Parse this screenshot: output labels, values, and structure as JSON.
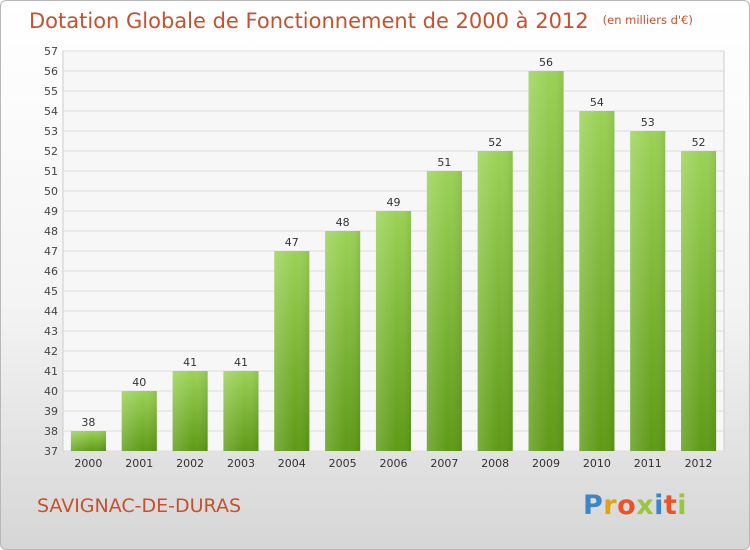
{
  "header": {
    "title": "Dotation Globale de Fonctionnement de 2000 à 2012",
    "unit": "(en milliers d'€)"
  },
  "footer": {
    "town": "SAVIGNAC-DE-DURAS",
    "logo": "Proxiti"
  },
  "colors": {
    "bar_top": "#9bd256",
    "bar_bottom": "#5e9a16",
    "title": "#c8502c"
  },
  "chart_data": {
    "type": "bar",
    "title": "Dotation Globale de Fonctionnement de 2000 à 2012",
    "categories": [
      "2000",
      "2001",
      "2002",
      "2003",
      "2004",
      "2005",
      "2006",
      "2007",
      "2008",
      "2009",
      "2010",
      "2011",
      "2012"
    ],
    "values": [
      38,
      40,
      41,
      41,
      47,
      48,
      49,
      51,
      52,
      56,
      54,
      53,
      52
    ],
    "ylim": [
      37,
      57
    ],
    "yticks": [
      37,
      38,
      39,
      40,
      41,
      42,
      43,
      44,
      45,
      46,
      47,
      48,
      49,
      50,
      51,
      52,
      53,
      54,
      55,
      56,
      57
    ],
    "grid": true,
    "data_labels": true
  }
}
